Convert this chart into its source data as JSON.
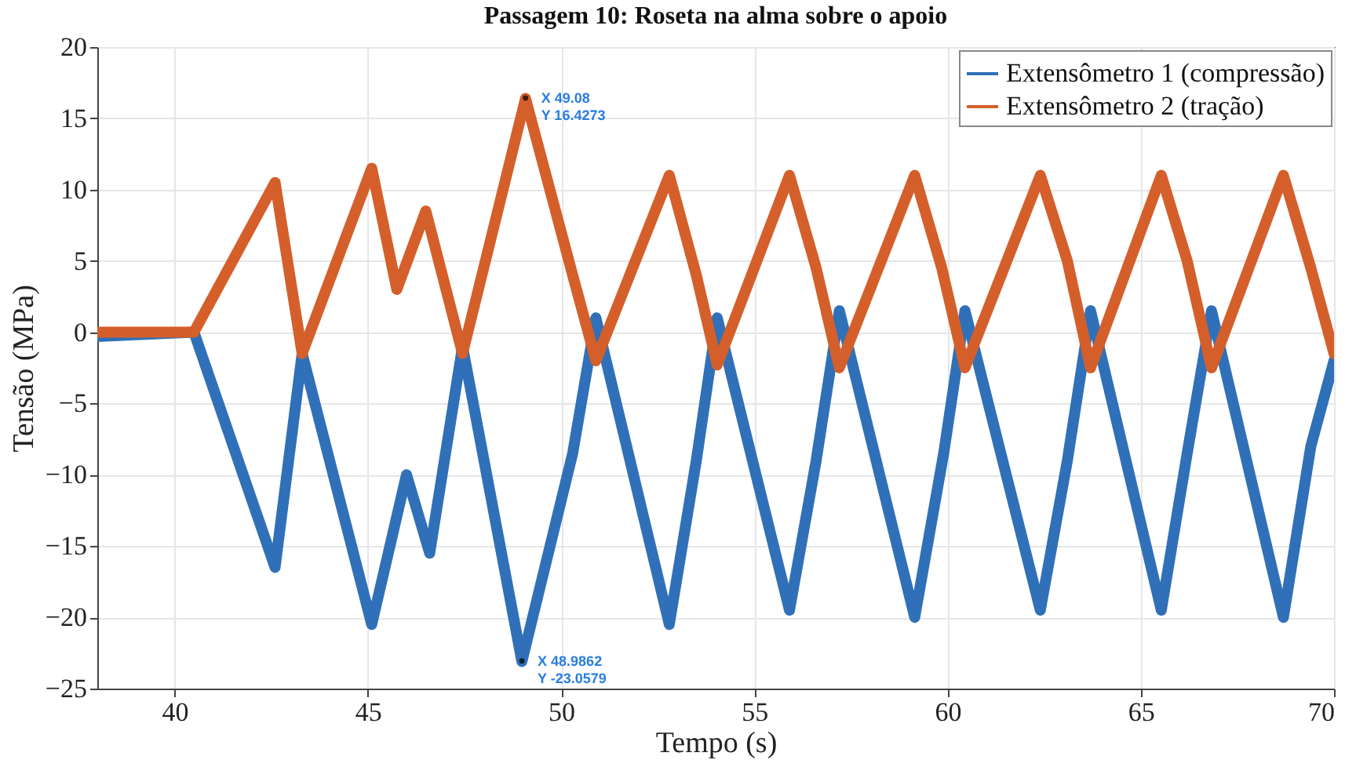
{
  "chart_data": {
    "type": "line",
    "title": "Passagem 10: Roseta na alma sobre o apoio",
    "xlabel": "Tempo (s)",
    "ylabel": "Tensão (MPa)",
    "xlim": [
      38,
      70
    ],
    "xticks": [
      40,
      45,
      50,
      55,
      60,
      65,
      70
    ],
    "ylim": [
      -25,
      20
    ],
    "yticks": [
      -25,
      -20,
      -15,
      -10,
      -5,
      0,
      5,
      10,
      15,
      20
    ],
    "grid": true,
    "legend": "top right",
    "line_style": "solid",
    "series": [
      {
        "name": "Extensômetro 1 (compressão)",
        "color": "#3070b8",
        "x": [
          38,
          40.5,
          42.6,
          43.3,
          45.1,
          46.0,
          46.6,
          47.45,
          48.9862,
          50.3,
          50.9,
          52.8,
          53.5,
          54.04,
          55.91,
          56.6,
          57.2,
          59.15,
          59.9,
          60.45,
          62.4,
          63.1,
          63.7,
          65.53,
          66.2,
          66.83,
          68.69,
          69.4,
          70
        ],
        "values": [
          -0.3,
          0,
          -16.5,
          -1.5,
          -20.5,
          -10,
          -15.5,
          -1,
          -23.1,
          -8.5,
          1,
          -20.5,
          -9,
          1,
          -19.5,
          -9,
          1.5,
          -20,
          -8.5,
          1.5,
          -19.5,
          -9,
          1.5,
          -19.5,
          -8.5,
          1.5,
          -20,
          -8,
          -2
        ]
      },
      {
        "name": "Extensômetro 2 (tração)",
        "color": "#d45f2a",
        "x": [
          38,
          40.5,
          42.6,
          43.3,
          45.1,
          45.75,
          46.5,
          47.45,
          49.08,
          50.3,
          50.9,
          52.8,
          53.5,
          54.04,
          55.91,
          56.6,
          57.2,
          59.15,
          59.85,
          60.45,
          62.4,
          63.1,
          63.7,
          65.53,
          66.2,
          66.83,
          68.69,
          69.4,
          70
        ],
        "values": [
          0,
          0,
          10.5,
          -1.5,
          11.5,
          3,
          8.5,
          -1.5,
          16.4,
          4,
          -2,
          11,
          4,
          -2.3,
          11,
          4.5,
          -2.5,
          11,
          4.5,
          -2.5,
          11,
          5,
          -2.5,
          11,
          5,
          -2.5,
          11,
          4.5,
          -1.5
        ]
      }
    ],
    "annotations": [
      {
        "text": "X 49.08\nY 16.4273",
        "x": 49.08,
        "y": 16.4273
      },
      {
        "text": "X 48.9862\nY -23.0579",
        "x": 48.9862,
        "y": -23.0579
      }
    ]
  }
}
